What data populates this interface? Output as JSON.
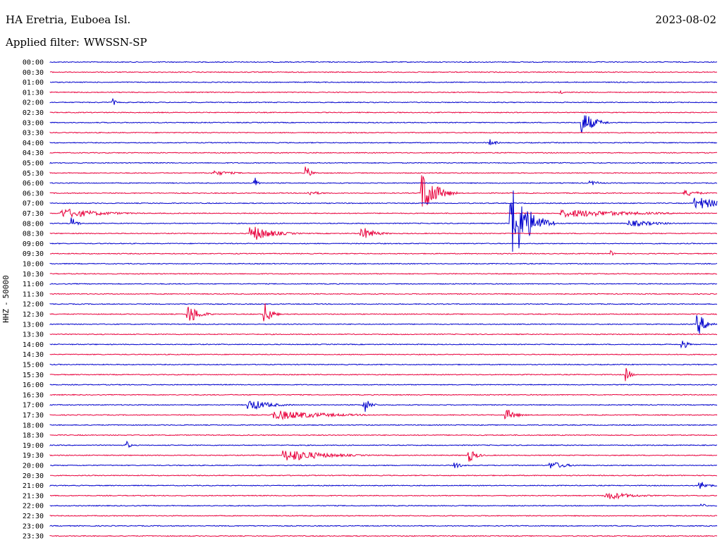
{
  "header": {
    "station": "HA Eretria, Euboea Isl.",
    "date": "2023-08-02",
    "filter_label": "Applied filter:",
    "filter_value": "WWSSN-SP"
  },
  "channel": {
    "name": "HHZ",
    "scale": "50000"
  },
  "chart_data": {
    "type": "line",
    "title": "HA Eretria, Euboea Isl.",
    "subtitle": "Applied filter: WWSSN-SP",
    "ylabel": "HHZ - 50000",
    "colors": {
      "even": "#0000cc",
      "odd": "#e8003c"
    },
    "rows": [
      "00:00",
      "00:30",
      "01:00",
      "01:30",
      "02:00",
      "02:30",
      "03:00",
      "03:30",
      "04:00",
      "04:30",
      "05:00",
      "05:30",
      "06:00",
      "06:30",
      "07:00",
      "07:30",
      "08:00",
      "08:30",
      "09:00",
      "09:30",
      "10:00",
      "10:30",
      "11:00",
      "11:30",
      "12:00",
      "12:30",
      "13:00",
      "13:30",
      "14:00",
      "14:30",
      "15:00",
      "15:30",
      "16:00",
      "16:30",
      "17:00",
      "17:30",
      "18:00",
      "18:30",
      "19:00",
      "19:30",
      "20:00",
      "20:30",
      "21:00",
      "21:30",
      "22:00",
      "22:30",
      "23:00",
      "23:30"
    ],
    "x_range_minutes": [
      0,
      30
    ],
    "events": [
      {
        "row": "02:00",
        "minute": 2.8,
        "amp": 5,
        "dur": 0.4
      },
      {
        "row": "01:30",
        "minute": 22.9,
        "amp": 2,
        "dur": 0.8
      },
      {
        "row": "03:00",
        "minute": 23.9,
        "amp": 15,
        "dur": 1.4
      },
      {
        "row": "04:00",
        "minute": 19.8,
        "amp": 5,
        "dur": 0.6
      },
      {
        "row": "05:30",
        "minute": 7.3,
        "amp": 3,
        "dur": 2.5
      },
      {
        "row": "05:30",
        "minute": 11.5,
        "amp": 9,
        "dur": 0.6
      },
      {
        "row": "06:00",
        "minute": 9.2,
        "amp": 8,
        "dur": 0.4
      },
      {
        "row": "06:00",
        "minute": 24.3,
        "amp": 3,
        "dur": 1.2
      },
      {
        "row": "06:30",
        "minute": 16.7,
        "amp": 28,
        "dur": 1.6
      },
      {
        "row": "06:30",
        "minute": 11.6,
        "amp": 3,
        "dur": 1.5
      },
      {
        "row": "06:30",
        "minute": 28.5,
        "amp": 4,
        "dur": 1.8
      },
      {
        "row": "07:00",
        "minute": 29.0,
        "amp": 8,
        "dur": 3.0
      },
      {
        "row": "07:30",
        "minute": 0.5,
        "amp": 6,
        "dur": 4.5
      },
      {
        "row": "07:30",
        "minute": 23.0,
        "amp": 5,
        "dur": 8.0
      },
      {
        "row": "08:00",
        "minute": 1.0,
        "amp": 9,
        "dur": 0.5
      },
      {
        "row": "08:00",
        "minute": 20.7,
        "amp": 50,
        "dur": 2.0
      },
      {
        "row": "08:00",
        "minute": 26.0,
        "amp": 4,
        "dur": 3.5
      },
      {
        "row": "08:30",
        "minute": 9.0,
        "amp": 10,
        "dur": 2.5
      },
      {
        "row": "08:30",
        "minute": 14.0,
        "amp": 8,
        "dur": 1.5
      },
      {
        "row": "09:30",
        "minute": 25.2,
        "amp": 5,
        "dur": 0.3
      },
      {
        "row": "12:30",
        "minute": 6.2,
        "amp": 13,
        "dur": 1.2
      },
      {
        "row": "12:30",
        "minute": 9.6,
        "amp": 16,
        "dur": 0.8
      },
      {
        "row": "13:00",
        "minute": 29.1,
        "amp": 14,
        "dur": 1.0
      },
      {
        "row": "14:00",
        "minute": 28.4,
        "amp": 8,
        "dur": 0.6
      },
      {
        "row": "15:30",
        "minute": 25.9,
        "amp": 10,
        "dur": 0.5
      },
      {
        "row": "17:00",
        "minute": 8.9,
        "amp": 7,
        "dur": 2.5
      },
      {
        "row": "17:00",
        "minute": 14.1,
        "amp": 11,
        "dur": 0.7
      },
      {
        "row": "17:30",
        "minute": 10.0,
        "amp": 6,
        "dur": 6.0
      },
      {
        "row": "17:30",
        "minute": 20.5,
        "amp": 7,
        "dur": 1.2
      },
      {
        "row": "19:00",
        "minute": 3.4,
        "amp": 6,
        "dur": 0.5
      },
      {
        "row": "19:30",
        "minute": 10.5,
        "amp": 8,
        "dur": 4.5
      },
      {
        "row": "19:30",
        "minute": 18.8,
        "amp": 9,
        "dur": 0.9
      },
      {
        "row": "20:00",
        "minute": 18.2,
        "amp": 4,
        "dur": 0.8
      },
      {
        "row": "20:00",
        "minute": 22.5,
        "amp": 5,
        "dur": 1.8
      },
      {
        "row": "21:00",
        "minute": 29.2,
        "amp": 6,
        "dur": 1.0
      },
      {
        "row": "21:30",
        "minute": 25.0,
        "amp": 5,
        "dur": 3.0
      },
      {
        "row": "22:00",
        "minute": 29.3,
        "amp": 4,
        "dur": 0.4
      }
    ]
  }
}
